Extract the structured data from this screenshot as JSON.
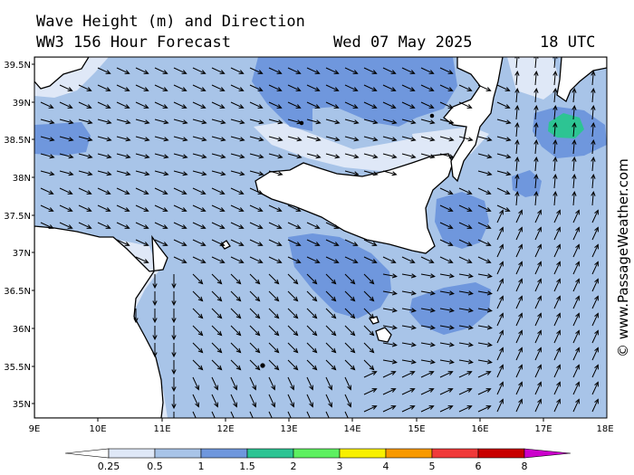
{
  "header": {
    "title_line1": "Wave Height (m) and Direction",
    "title_line2": "WW3 156 Hour Forecast",
    "date": "Wed 07 May 2025",
    "time": "18 UTC"
  },
  "map": {
    "lat_labels": [
      "39.5N",
      "39N",
      "38.5N",
      "38N",
      "37.5N",
      "37N",
      "36.5N",
      "36N",
      "35.5N",
      "35N"
    ],
    "lon_labels": [
      "9E",
      "10E",
      "11E",
      "12E",
      "13E",
      "14E",
      "15E",
      "16E",
      "17E",
      "18E"
    ],
    "land_color": "#ffffff",
    "sea_base_color": "#a8c4e8",
    "credit": "© www.PassageWeather.com"
  },
  "colorbar": {
    "ticks": [
      "0.25",
      "0.5",
      "1",
      "1.5",
      "2",
      "3",
      "4",
      "5",
      "6",
      "8"
    ],
    "colors": [
      "#dfe8f7",
      "#a8c4e8",
      "#6f97dd",
      "#2dc493",
      "#5df060",
      "#f8f000",
      "#f89900",
      "#f03a3a",
      "#c80000",
      "#cc00cc"
    ]
  }
}
